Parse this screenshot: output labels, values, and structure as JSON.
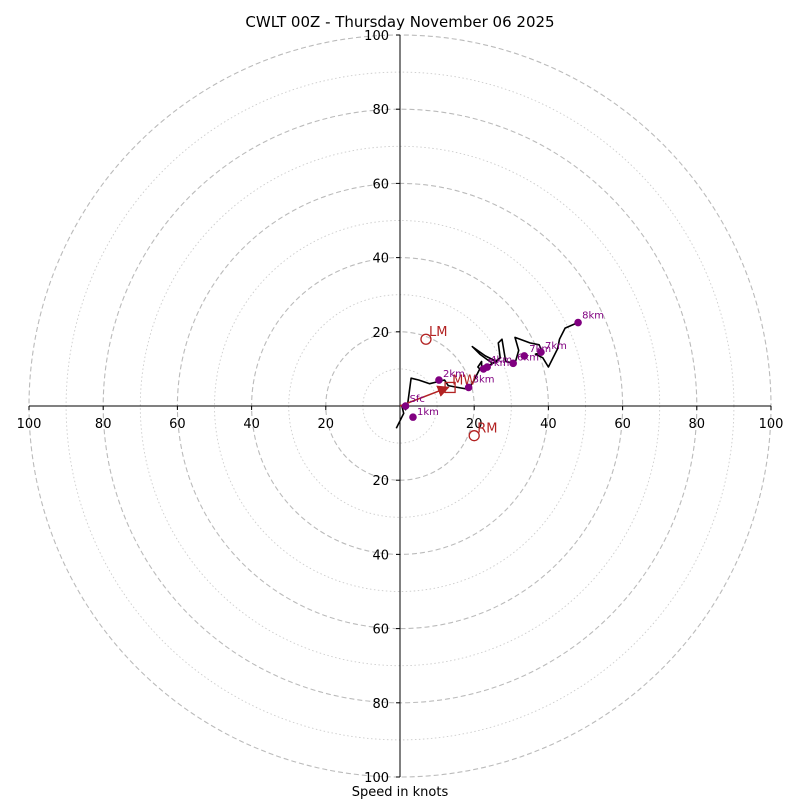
{
  "chart_data": {
    "type": "hodograph",
    "title": "CWLT 00Z - Thursday November 06 2025",
    "xlabel": "Speed in knots",
    "max_speed": 100,
    "ring_step": 20,
    "minor_ring_step": 10,
    "tick_labels": {
      "left": [
        "100",
        "80",
        "60",
        "40",
        "20"
      ],
      "right": [
        "20",
        "40",
        "60",
        "80",
        "100"
      ],
      "top": [
        "20",
        "40",
        "60",
        "80",
        "100"
      ],
      "bottom": [
        "20",
        "40",
        "60",
        "80",
        "100"
      ]
    },
    "tick_values": [
      20,
      40,
      60,
      80,
      100
    ],
    "hodograph_line": [
      [
        -1,
        -6
      ],
      [
        -0.5,
        -5
      ],
      [
        0,
        -4
      ],
      [
        1,
        -2
      ],
      [
        0.5,
        0
      ],
      [
        1.5,
        -1
      ],
      [
        2,
        0
      ],
      [
        3,
        7.5
      ],
      [
        5,
        7
      ],
      [
        8,
        6
      ],
      [
        10,
        6.5
      ],
      [
        12,
        7
      ],
      [
        13,
        5.5
      ],
      [
        15.5,
        5
      ],
      [
        18.5,
        4.5
      ],
      [
        20,
        7
      ],
      [
        21.5,
        10
      ],
      [
        21,
        10.5
      ],
      [
        22,
        12
      ],
      [
        22,
        9.5
      ],
      [
        23,
        10.5
      ],
      [
        26,
        12
      ],
      [
        23,
        13.5
      ],
      [
        19.5,
        16
      ],
      [
        21.5,
        14
      ],
      [
        23.5,
        12.5
      ],
      [
        25,
        11.5
      ],
      [
        27,
        13
      ],
      [
        26.5,
        17
      ],
      [
        27.5,
        18
      ],
      [
        28.5,
        12
      ],
      [
        31,
        11.5
      ],
      [
        32,
        15
      ],
      [
        31,
        18.5
      ],
      [
        35,
        17
      ],
      [
        37.5,
        16.5
      ],
      [
        38.5,
        14.5
      ],
      [
        36.5,
        14
      ],
      [
        38.5,
        13
      ],
      [
        40,
        10.5
      ],
      [
        42.5,
        15.5
      ],
      [
        43,
        18
      ],
      [
        44.5,
        21
      ],
      [
        48,
        22.5
      ]
    ],
    "height_points": [
      {
        "label": "Sfc",
        "u": 1.5,
        "v": 0,
        "dx": 4,
        "dy": -4
      },
      {
        "label": "1km",
        "u": 3.5,
        "v": -3,
        "dx": 4,
        "dy": -2
      },
      {
        "label": "2km",
        "u": 10.5,
        "v": 7,
        "dx": 4,
        "dy": -3
      },
      {
        "label": "3km",
        "u": 18.5,
        "v": 5,
        "dx": 4,
        "dy": -5
      },
      {
        "label": "4km",
        "u": 23.5,
        "v": 10.5,
        "dx": 3,
        "dy": -4
      },
      {
        "label": "5km",
        "u": 22.5,
        "v": 10,
        "dx": 4,
        "dy": -3
      },
      {
        "label": "6km",
        "u": 30.5,
        "v": 11.5,
        "dx": 4,
        "dy": -3
      },
      {
        "label": "7km",
        "u": 33.5,
        "v": 13.5,
        "dx": 5,
        "dy": -4
      },
      {
        "label": "7km",
        "u": 38,
        "v": 14.5,
        "dx": 4,
        "dy": -3
      },
      {
        "label": "8km",
        "u": 48,
        "v": 22.5,
        "dx": 4,
        "dy": -4
      }
    ],
    "storm_motion": {
      "LM": {
        "label": "LM",
        "u": 7,
        "v": 18
      },
      "RM": {
        "label": "RM",
        "u": 20,
        "v": -8
      },
      "MW": {
        "label": "MW",
        "u": 13.5,
        "v": 5
      }
    },
    "shear_vector": {
      "from": [
        0,
        0
      ],
      "to": [
        13,
        5
      ]
    },
    "colors": {
      "rings": "#bbbbbb",
      "minor_rings": "#cccccc",
      "line": "#000000",
      "points": "#800080",
      "storm": "#b22222"
    }
  }
}
